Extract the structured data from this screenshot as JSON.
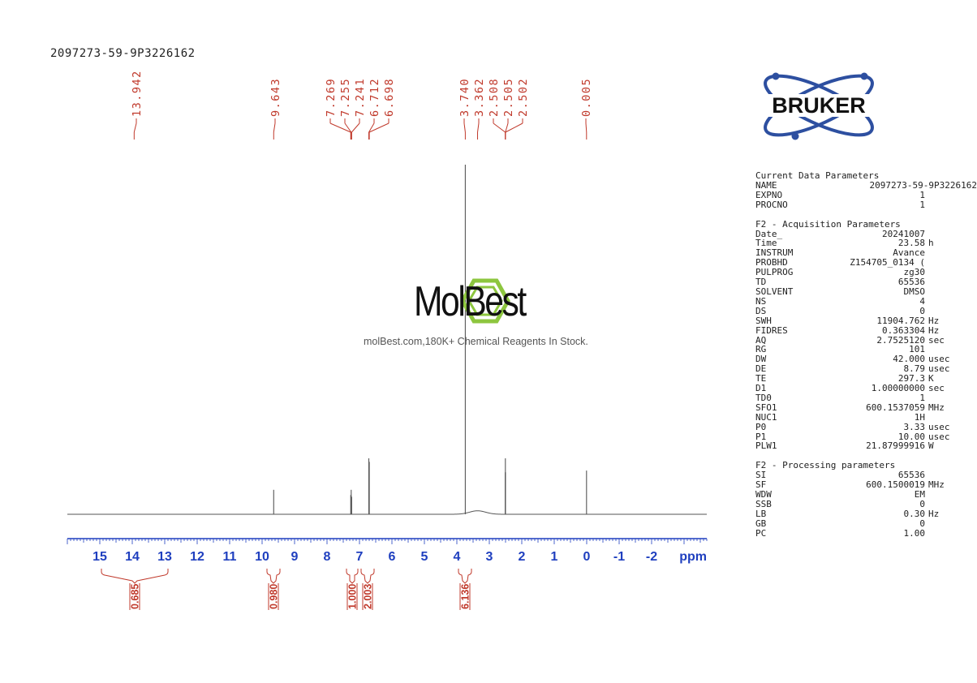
{
  "sample_id": "2097273-59-9P3226162",
  "watermark": {
    "brand": "MolBest",
    "tagline": "molBest.com,180K+ Chemical Reagents In Stock."
  },
  "bruker_logo_text": "BRUKER",
  "colors": {
    "peak_labels": "#c0392b",
    "axis": "#1f3fbf",
    "spectrum": "#555555",
    "logo_green": "#8dc63f",
    "bruker_blue": "#2d4fa0"
  },
  "chart_data": {
    "type": "line",
    "xlabel": "ppm",
    "xlim": [
      16.0,
      -3.7
    ],
    "x_reversed": true,
    "ticks": [
      15,
      14,
      13,
      12,
      11,
      10,
      9,
      8,
      7,
      6,
      5,
      4,
      3,
      2,
      1,
      0,
      -1,
      -2
    ],
    "tick_labels": [
      "15",
      "14",
      "13",
      "12",
      "11",
      "10",
      "9",
      "8",
      "7",
      "6",
      "5",
      "4",
      "3",
      "2",
      "1",
      "0",
      "-1",
      "-2"
    ],
    "peak_labels": [
      "13.942",
      "9.643",
      "7.269",
      "7.255",
      "7.241",
      "6.712",
      "6.698",
      "3.740",
      "3.362",
      "2.508",
      "2.505",
      "2.502",
      "0.005"
    ],
    "peaks": [
      {
        "ppm": 9.643,
        "height": 0.07
      },
      {
        "ppm": 7.269,
        "height": 0.055
      },
      {
        "ppm": 7.255,
        "height": 0.07
      },
      {
        "ppm": 7.241,
        "height": 0.05
      },
      {
        "ppm": 6.712,
        "height": 0.16
      },
      {
        "ppm": 6.698,
        "height": 0.15
      },
      {
        "ppm": 3.74,
        "height": 1.0
      },
      {
        "ppm": 2.508,
        "height": 0.12
      },
      {
        "ppm": 2.505,
        "height": 0.16
      },
      {
        "ppm": 2.502,
        "height": 0.12
      },
      {
        "ppm": 0.005,
        "height": 0.125
      }
    ],
    "broad_humps": [
      {
        "ppm": 3.362,
        "height": 0.01,
        "width": 0.35
      },
      {
        "ppm": 13.942,
        "height": 0.0,
        "width": 0.5
      }
    ],
    "integrals": [
      {
        "label": "0.685",
        "from": 14.95,
        "to": 12.9
      },
      {
        "label": "0.980",
        "from": 9.85,
        "to": 9.45
      },
      {
        "label": "1.000",
        "from": 7.4,
        "to": 7.05
      },
      {
        "label": "2.003",
        "from": 6.95,
        "to": 6.55
      },
      {
        "label": "6.136",
        "from": 3.95,
        "to": 3.55
      }
    ]
  },
  "parameters": [
    {
      "title": "Current Data Parameters",
      "rows": [
        {
          "k": "NAME",
          "v": "2097273-59-9P3226162",
          "u": ""
        },
        {
          "k": "EXPNO",
          "v": "1",
          "u": ""
        },
        {
          "k": "PROCNO",
          "v": "1",
          "u": ""
        }
      ]
    },
    {
      "title": "F2 - Acquisition Parameters",
      "rows": [
        {
          "k": "Date_",
          "v": "20241007",
          "u": ""
        },
        {
          "k": "Time",
          "v": "23.58",
          "u": "h"
        },
        {
          "k": "INSTRUM",
          "v": "Avance",
          "u": ""
        },
        {
          "k": "PROBHD",
          "v": "Z154705_0134 (",
          "u": ""
        },
        {
          "k": "PULPROG",
          "v": "zg30",
          "u": ""
        },
        {
          "k": "TD",
          "v": "65536",
          "u": ""
        },
        {
          "k": "SOLVENT",
          "v": "DMSO",
          "u": ""
        },
        {
          "k": "NS",
          "v": "4",
          "u": ""
        },
        {
          "k": "DS",
          "v": "0",
          "u": ""
        },
        {
          "k": "SWH",
          "v": "11904.762",
          "u": "Hz"
        },
        {
          "k": "FIDRES",
          "v": "0.363304",
          "u": "Hz"
        },
        {
          "k": "AQ",
          "v": "2.7525120",
          "u": "sec"
        },
        {
          "k": "RG",
          "v": "101",
          "u": ""
        },
        {
          "k": "DW",
          "v": "42.000",
          "u": "usec"
        },
        {
          "k": "DE",
          "v": "8.79",
          "u": "usec"
        },
        {
          "k": "TE",
          "v": "297.3",
          "u": "K"
        },
        {
          "k": "D1",
          "v": "1.00000000",
          "u": "sec"
        },
        {
          "k": "TD0",
          "v": "1",
          "u": ""
        },
        {
          "k": "SFO1",
          "v": "600.1537059",
          "u": "MHz"
        },
        {
          "k": "NUC1",
          "v": "1H",
          "u": ""
        },
        {
          "k": "P0",
          "v": "3.33",
          "u": "usec"
        },
        {
          "k": "P1",
          "v": "10.00",
          "u": "usec"
        },
        {
          "k": "PLW1",
          "v": "21.87999916",
          "u": "W"
        }
      ]
    },
    {
      "title": "F2 - Processing parameters",
      "rows": [
        {
          "k": "SI",
          "v": "65536",
          "u": ""
        },
        {
          "k": "SF",
          "v": "600.1500019",
          "u": "MHz"
        },
        {
          "k": "WDW",
          "v": "EM",
          "u": ""
        },
        {
          "k": "SSB",
          "v": "0",
          "u": ""
        },
        {
          "k": "LB",
          "v": "0.30",
          "u": "Hz"
        },
        {
          "k": "GB",
          "v": "0",
          "u": ""
        },
        {
          "k": "PC",
          "v": "1.00",
          "u": ""
        }
      ]
    }
  ]
}
